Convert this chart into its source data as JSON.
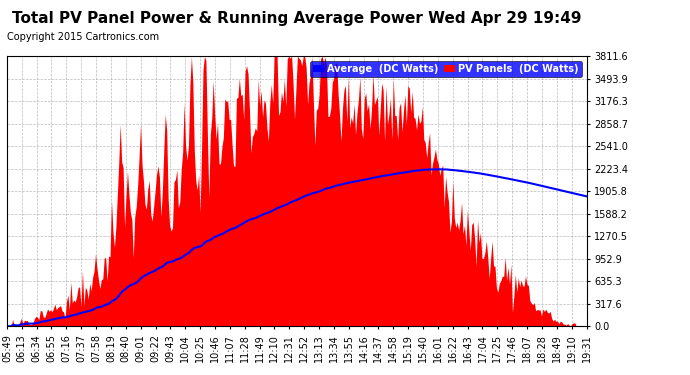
{
  "title": "Total PV Panel Power & Running Average Power Wed Apr 29 19:49",
  "copyright": "Copyright 2015 Cartronics.com",
  "legend_avg": "Average  (DC Watts)",
  "legend_pv": "PV Panels  (DC Watts)",
  "avg_color": "#0000ff",
  "pv_color": "#ff0000",
  "bg_color": "#ffffff",
  "grid_color": "#aaaaaa",
  "ymax": 3811.6,
  "ymin": 0.0,
  "yticks": [
    0.0,
    317.6,
    635.3,
    952.9,
    1270.5,
    1588.2,
    1905.8,
    2223.4,
    2541.0,
    2858.7,
    3176.3,
    3493.9,
    3811.6
  ],
  "xtick_labels": [
    "05:49",
    "06:13",
    "06:34",
    "06:55",
    "07:16",
    "07:37",
    "07:58",
    "08:19",
    "08:40",
    "09:01",
    "09:22",
    "09:43",
    "10:04",
    "10:25",
    "10:46",
    "11:07",
    "11:28",
    "11:49",
    "12:10",
    "12:31",
    "12:52",
    "13:13",
    "13:34",
    "13:55",
    "14:16",
    "14:37",
    "14:58",
    "15:19",
    "15:40",
    "16:01",
    "16:22",
    "16:43",
    "17:04",
    "17:25",
    "17:46",
    "18:07",
    "18:28",
    "18:49",
    "19:10",
    "19:31"
  ],
  "title_fontsize": 11,
  "copyright_fontsize": 7,
  "axis_fontsize": 7
}
